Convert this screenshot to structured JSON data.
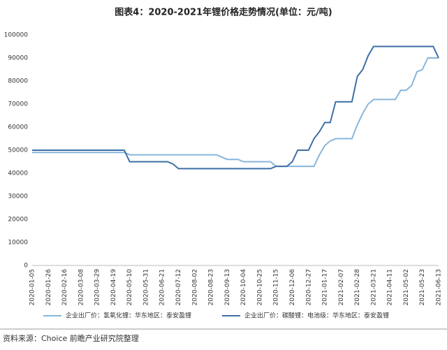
{
  "chart_data": {
    "type": "line",
    "title": "图表4：2020-2021年锂价格走势情况(单位：元/吨)",
    "source": "资料来源：Choice 前瞻产业研究院整理",
    "categories": [
      "2020-01-05",
      null,
      null,
      "2020-01-26",
      null,
      null,
      "2020-02-16",
      null,
      null,
      "2020-03-08",
      null,
      null,
      "2020-03-29",
      null,
      null,
      "2020-04-19",
      null,
      null,
      "2020-05-10",
      null,
      null,
      "2020-05-31",
      null,
      null,
      "2020-06-21",
      null,
      null,
      "2020-07-12",
      null,
      null,
      "2020-08-02",
      null,
      null,
      "2020-08-23",
      null,
      null,
      "2020-09-13",
      null,
      null,
      "2020-10-04",
      null,
      null,
      "2020-10-25",
      null,
      null,
      "2020-11-15",
      null,
      null,
      "2020-12-06",
      null,
      null,
      "2020-12-27",
      null,
      null,
      "2021-01-17",
      null,
      null,
      "2021-02-07",
      null,
      null,
      "2021-02-28",
      null,
      null,
      "2021-03-21",
      null,
      null,
      "2021-04-11",
      null,
      null,
      "2021-05-02",
      null,
      null,
      "2021-05-23",
      null,
      null,
      "2021-06-13"
    ],
    "series": [
      {
        "name": "企业出厂价：氢氧化锂：华东地区：泰安盈锂",
        "color": "#86b6dc",
        "values": [
          49000,
          49000,
          49000,
          49000,
          49000,
          49000,
          49000,
          49000,
          49000,
          49000,
          49000,
          49000,
          49000,
          49000,
          49000,
          49000,
          49000,
          49000,
          48000,
          48000,
          48000,
          48000,
          48000,
          48000,
          48000,
          48000,
          48000,
          48000,
          48000,
          48000,
          48000,
          48000,
          48000,
          48000,
          48000,
          47000,
          46000,
          46000,
          46000,
          45000,
          45000,
          45000,
          45000,
          45000,
          45000,
          43000,
          43000,
          43000,
          43000,
          43000,
          43000,
          43000,
          43000,
          48000,
          52000,
          54000,
          55000,
          55000,
          55000,
          55000,
          61000,
          66000,
          70000,
          72000,
          72000,
          72000,
          72000,
          72000,
          76000,
          76000,
          78000,
          84000,
          85000,
          90000,
          90000,
          90000
        ]
      },
      {
        "name": "企业出厂价：碳酸锂：电池级：华东地区：泰安盈锂",
        "color": "#3d6fa6",
        "values": [
          50000,
          50000,
          50000,
          50000,
          50000,
          50000,
          50000,
          50000,
          50000,
          50000,
          50000,
          50000,
          50000,
          50000,
          50000,
          50000,
          50000,
          50000,
          45000,
          45000,
          45000,
          45000,
          45000,
          45000,
          45000,
          45000,
          44000,
          42000,
          42000,
          42000,
          42000,
          42000,
          42000,
          42000,
          42000,
          42000,
          42000,
          42000,
          42000,
          42000,
          42000,
          42000,
          42000,
          42000,
          42000,
          43000,
          43000,
          43000,
          45000,
          50000,
          50000,
          50000,
          55000,
          58000,
          62000,
          62000,
          71000,
          71000,
          71000,
          71000,
          82000,
          85000,
          91000,
          95000,
          95000,
          95000,
          95000,
          95000,
          95000,
          95000,
          95000,
          95000,
          95000,
          95000,
          95000,
          90000
        ]
      }
    ],
    "ylim": [
      0,
      100000
    ],
    "yticks": [
      0,
      10000,
      20000,
      30000,
      40000,
      50000,
      60000,
      70000,
      80000,
      90000,
      100000
    ],
    "grid": false
  }
}
